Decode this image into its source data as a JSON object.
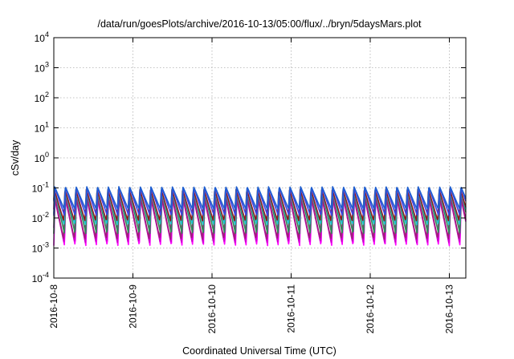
{
  "chart_data": {
    "type": "line",
    "title": "/data/run/goesPlots/archive/2016-10-13/05:00/flux/../bryn/5daysMars.plot",
    "xlabel": "Coordinated Universal Time (UTC)",
    "ylabel": "cSv/day",
    "yscale": "log",
    "ylim": [
      0.0001,
      10000
    ],
    "y_ticks": [
      {
        "value": 0.0001,
        "base": "10",
        "exp": "-4"
      },
      {
        "value": 0.001,
        "base": "10",
        "exp": "-3"
      },
      {
        "value": 0.01,
        "base": "10",
        "exp": "-2"
      },
      {
        "value": 0.1,
        "base": "10",
        "exp": "-1"
      },
      {
        "value": 1,
        "base": "10",
        "exp": "0"
      },
      {
        "value": 10,
        "base": "10",
        "exp": "1"
      },
      {
        "value": 100,
        "base": "10",
        "exp": "2"
      },
      {
        "value": 1000,
        "base": "10",
        "exp": "3"
      },
      {
        "value": 10000,
        "base": "10",
        "exp": "4"
      }
    ],
    "x_start": "2016-10-08",
    "x_end": "2016-10-13 05:00",
    "x_ticks": [
      "2016-10-8",
      "2016-10-9",
      "2016-10-10",
      "2016-10-11",
      "2016-10-12",
      "2016-10-13"
    ],
    "grid": true,
    "cycles_per_day": 7.4,
    "series": [
      {
        "color": "#ff00ff",
        "peak": 0.05,
        "trough": 0.0012
      },
      {
        "color": "#cc00cc",
        "peak": 0.045,
        "trough": 0.0015
      },
      {
        "color": "#a0207a",
        "peak": 0.06,
        "trough": 0.002
      },
      {
        "color": "#2e8b57",
        "peak": 0.07,
        "trough": 0.003
      },
      {
        "color": "#20c0d0",
        "peak": 0.075,
        "trough": 0.006
      },
      {
        "color": "#8b1a1a",
        "peak": 0.09,
        "trough": 0.008
      },
      {
        "color": "#4040e0",
        "peak": 0.1,
        "trough": 0.012
      },
      {
        "color": "#1f5fd0",
        "peak": 0.11,
        "trough": 0.02
      }
    ]
  }
}
